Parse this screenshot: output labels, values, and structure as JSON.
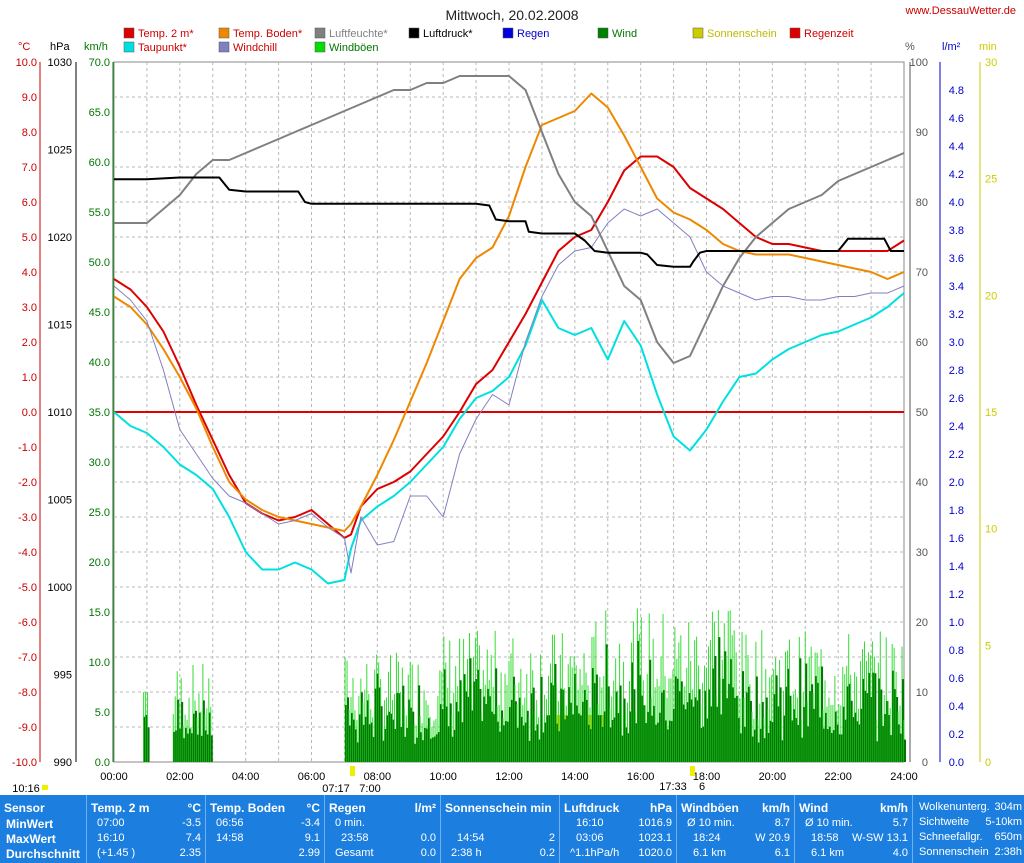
{
  "chart_data": {
    "type": "line",
    "title": "Mittwoch, 20.02.2008",
    "site": "www.DessauWetter.de",
    "grid": true,
    "x_ticks": [
      "00:00",
      "02:00",
      "04:00",
      "06:00",
      "08:00",
      "10:00",
      "12:00",
      "14:00",
      "16:00",
      "18:00",
      "20:00",
      "22:00",
      "24:00"
    ],
    "xlim": [
      0,
      24
    ],
    "axes": {
      "temp": {
        "unit": "°C",
        "ylim": [
          -10,
          10
        ],
        "ticks": [
          "10.0",
          "9.0",
          "8.0",
          "7.0",
          "6.0",
          "5.0",
          "4.0",
          "3.0",
          "2.0",
          "1.0",
          "0.0",
          "-1.0",
          "-2.0",
          "-3.0",
          "-4.0",
          "-5.0",
          "-6.0",
          "-7.0",
          "-8.0",
          "-9.0",
          "-10.0"
        ],
        "color": "#cc0000"
      },
      "press": {
        "unit": "hPa",
        "ylim": [
          990,
          1030
        ],
        "ticks": [
          "1030",
          "1025",
          "1020",
          "1015",
          "1010",
          "1005",
          "1000",
          "995",
          "990"
        ],
        "color": "#000000"
      },
      "wind": {
        "unit": "km/h",
        "ylim": [
          0,
          70
        ],
        "ticks": [
          "70.0",
          "65.0",
          "60.0",
          "55.0",
          "50.0",
          "45.0",
          "40.0",
          "35.0",
          "30.0",
          "25.0",
          "20.0",
          "15.0",
          "10.0",
          "5.0",
          "0.0"
        ],
        "color": "#007700"
      },
      "hum": {
        "unit": "%",
        "ylim": [
          0,
          100
        ],
        "ticks": [
          "100",
          "90",
          "80",
          "70",
          "60",
          "50",
          "40",
          "30",
          "20",
          "10",
          "0"
        ],
        "color": "#555555"
      },
      "rain": {
        "unit": "l/m²",
        "ylim": [
          0,
          5
        ],
        "ticks": [
          "4.8",
          "4.6",
          "4.4",
          "4.2",
          "4.0",
          "3.8",
          "3.6",
          "3.4",
          "3.2",
          "3.0",
          "2.8",
          "2.6",
          "2.4",
          "2.2",
          "2.0",
          "1.8",
          "1.6",
          "1.4",
          "1.2",
          "1.0",
          "0.8",
          "0.6",
          "0.4",
          "0.2",
          "0.0"
        ],
        "color": "#0000cc"
      },
      "sun": {
        "unit": "min",
        "ylim": [
          0,
          30
        ],
        "ticks": [
          "30",
          "25",
          "20",
          "15",
          "10",
          "5",
          "0"
        ],
        "color": "#cccc00"
      }
    },
    "legend": [
      {
        "label": "Temp. 2 m*",
        "color": "#dd0000",
        "text": "#cc0000"
      },
      {
        "label": "Temp. Boden*",
        "color": "#ee8800",
        "text": "#cc0000"
      },
      {
        "label": "Luftfeuchte*",
        "color": "#808080",
        "text": "#808080"
      },
      {
        "label": "Luftdruck*",
        "color": "#000000",
        "text": "#000000"
      },
      {
        "label": "Regen",
        "color": "#0000dd",
        "text": "#0000cc"
      },
      {
        "label": "Wind",
        "color": "#008000",
        "text": "#007700"
      },
      {
        "label": "Sonnenschein",
        "color": "#cccc00",
        "text": "#bbbb00"
      },
      {
        "label": "Regenzeit",
        "color": "#dd0000",
        "text": "#cc0000"
      },
      {
        "label": "Taupunkt*",
        "color": "#00e0e0",
        "text": "#cc0000"
      },
      {
        "label": "Windchill",
        "color": "#8080c0",
        "text": "#cc0000"
      },
      {
        "label": "Windböen",
        "color": "#00dd00",
        "text": "#007700"
      }
    ],
    "series": [
      {
        "name": "Temp. 2 m",
        "axis": "temp",
        "color": "#dd0000",
        "x": [
          0,
          0.5,
          1,
          1.5,
          2,
          2.5,
          3,
          3.5,
          4,
          4.5,
          5,
          5.5,
          6,
          6.5,
          7,
          7.2,
          7.5,
          8,
          8.5,
          9,
          9.5,
          10,
          10.5,
          11,
          11.5,
          12,
          12.5,
          13,
          13.5,
          14,
          14.5,
          15,
          15.5,
          16,
          16.5,
          17,
          17.5,
          18,
          18.5,
          19,
          19.5,
          20,
          20.5,
          21,
          21.5,
          22,
          22.5,
          23,
          23.5,
          24
        ],
        "y": [
          3.8,
          3.5,
          3.0,
          2.3,
          1.3,
          0.2,
          -0.8,
          -1.8,
          -2.6,
          -2.9,
          -3.1,
          -3.0,
          -2.8,
          -3.2,
          -3.6,
          -3.5,
          -2.7,
          -2.2,
          -2.0,
          -1.7,
          -1.2,
          -0.7,
          0,
          0.8,
          1.2,
          2.0,
          2.8,
          3.7,
          4.6,
          5.0,
          5.2,
          6.0,
          6.9,
          7.3,
          7.3,
          7.0,
          6.4,
          6.1,
          5.8,
          5.4,
          5.0,
          4.8,
          4.8,
          4.7,
          4.6,
          4.6,
          4.6,
          4.6,
          4.6,
          4.9
        ]
      },
      {
        "name": "Temp. Boden",
        "axis": "temp",
        "color": "#ee8800",
        "x": [
          0,
          0.5,
          1,
          1.5,
          2,
          2.5,
          3,
          3.5,
          4,
          4.5,
          5,
          5.5,
          6,
          6.5,
          7,
          7.2,
          7.5,
          8,
          8.5,
          9,
          9.5,
          10,
          10.5,
          11,
          11.5,
          12,
          12.5,
          13,
          13.5,
          14,
          14.5,
          15,
          15.5,
          16,
          16.5,
          17,
          17.5,
          18,
          18.5,
          19,
          19.5,
          20,
          20.5,
          21,
          21.5,
          22,
          22.5,
          23,
          23.5,
          24
        ],
        "y": [
          3.3,
          3.0,
          2.5,
          1.8,
          1.0,
          0.1,
          -1.0,
          -2.0,
          -2.5,
          -2.8,
          -3.0,
          -3.1,
          -3.2,
          -3.3,
          -3.4,
          -3.2,
          -2.7,
          -1.8,
          -0.8,
          0.3,
          1.4,
          2.6,
          3.8,
          4.4,
          4.7,
          5.6,
          7.0,
          8.2,
          8.4,
          8.6,
          9.1,
          8.7,
          7.9,
          7.0,
          6.1,
          5.7,
          5.5,
          5.2,
          4.8,
          4.6,
          4.5,
          4.5,
          4.5,
          4.4,
          4.3,
          4.2,
          4.1,
          4.0,
          3.8,
          4.0
        ]
      },
      {
        "name": "Taupunkt",
        "axis": "temp",
        "color": "#00e0e0",
        "x": [
          0,
          0.5,
          1,
          1.5,
          2,
          2.5,
          3,
          3.5,
          4,
          4.5,
          5,
          5.5,
          6,
          6.5,
          7,
          7.2,
          7.5,
          8,
          8.5,
          9,
          9.5,
          10,
          10.5,
          11,
          11.5,
          12,
          12.5,
          13,
          13.5,
          14,
          14.5,
          15,
          15.5,
          16,
          16.5,
          17,
          17.5,
          18,
          18.5,
          19,
          19.5,
          20,
          20.5,
          21,
          21.5,
          22,
          22.5,
          23,
          23.5,
          24
        ],
        "y": [
          0,
          -0.4,
          -0.6,
          -1.0,
          -1.5,
          -1.8,
          -2.2,
          -3.0,
          -4.0,
          -4.5,
          -4.5,
          -4.3,
          -4.5,
          -4.9,
          -4.8,
          -3.9,
          -3.1,
          -2.7,
          -2.4,
          -2.0,
          -1.5,
          -1.0,
          -0.2,
          0.4,
          0.6,
          1.0,
          1.9,
          3.2,
          2.4,
          2.2,
          2.4,
          1.5,
          2.6,
          1.9,
          0.5,
          -0.7,
          -1.1,
          -0.5,
          0.3,
          1.0,
          1.1,
          1.5,
          1.8,
          2.0,
          2.2,
          2.3,
          2.5,
          2.7,
          3.0,
          3.4
        ]
      },
      {
        "name": "Windchill",
        "axis": "temp",
        "color": "#8080c0",
        "x": [
          0,
          0.5,
          1,
          1.5,
          2,
          2.5,
          3,
          3.5,
          4,
          4.5,
          5,
          5.5,
          6,
          6.5,
          7,
          7.2,
          7.5,
          8,
          8.5,
          9,
          9.5,
          10,
          10.5,
          11,
          11.5,
          12,
          12.5,
          13,
          13.5,
          14,
          14.5,
          15,
          15.5,
          16,
          16.5,
          17,
          17.5,
          18,
          18.5,
          19,
          19.5,
          20,
          20.5,
          21,
          21.5,
          22,
          22.5,
          23,
          23.5,
          24
        ],
        "y": [
          3.6,
          3.2,
          2.6,
          1.2,
          -0.5,
          -1.2,
          -1.9,
          -2.4,
          -2.6,
          -2.9,
          -3.2,
          -3.1,
          -2.9,
          -3.3,
          -3.6,
          -4.6,
          -3.0,
          -3.8,
          -3.7,
          -2.4,
          -2.4,
          -3.0,
          -1.2,
          -0.2,
          0.5,
          0.2,
          2.0,
          3.3,
          4.2,
          4.6,
          4.7,
          5.4,
          5.8,
          5.6,
          5.8,
          5.4,
          5.0,
          4.0,
          3.6,
          3.4,
          3.2,
          3.3,
          3.3,
          3.2,
          3.2,
          3.3,
          3.3,
          3.4,
          3.4,
          3.6
        ]
      },
      {
        "name": "Luftfeuchte",
        "axis": "hum",
        "color": "#808080",
        "x": [
          0,
          0.5,
          1,
          1.5,
          2,
          2.5,
          3,
          3.5,
          4,
          4.5,
          5,
          5.5,
          6,
          6.5,
          7,
          7.5,
          8,
          8.5,
          9,
          9.5,
          10,
          10.5,
          11,
          11.5,
          12,
          12.5,
          13,
          13.5,
          14,
          14.5,
          15,
          15.5,
          16,
          16.5,
          17,
          17.5,
          18,
          18.5,
          19,
          19.5,
          20,
          20.5,
          21,
          21.5,
          22,
          22.5,
          23,
          23.5,
          24
        ],
        "y": [
          77,
          77,
          77,
          79,
          81,
          84,
          86,
          86,
          87,
          88,
          89,
          90,
          91,
          92,
          93,
          94,
          95,
          96,
          96,
          97,
          97,
          98,
          98,
          98,
          98,
          96,
          90,
          84,
          80,
          78,
          73,
          68,
          66,
          60,
          57,
          58,
          63,
          68,
          72,
          75,
          77,
          79,
          80,
          81,
          83,
          84,
          85,
          86,
          87
        ]
      },
      {
        "name": "Luftdruck",
        "axis": "press",
        "color": "#000000",
        "x": [
          0,
          1,
          2,
          3,
          3.2,
          3.5,
          4,
          5,
          5.6,
          5.8,
          6,
          7,
          8,
          9,
          10,
          11,
          11.4,
          11.6,
          12,
          12.5,
          12.6,
          13,
          14,
          14.3,
          14.6,
          15,
          16,
          16.2,
          16.5,
          17,
          17.5,
          17.6,
          17.8,
          18,
          19,
          20,
          21,
          21.5,
          22,
          22.3,
          22.5,
          23,
          23.4,
          23.6,
          24
        ],
        "y": [
          1023.3,
          1023.3,
          1023.4,
          1023.4,
          1023.4,
          1022.7,
          1022.6,
          1022.6,
          1022.6,
          1022.0,
          1021.9,
          1021.9,
          1021.9,
          1021.9,
          1021.9,
          1021.9,
          1021.8,
          1021.0,
          1020.9,
          1020.9,
          1020.3,
          1020.2,
          1020.2,
          1019.8,
          1019.2,
          1019.1,
          1019.1,
          1019.0,
          1018.4,
          1018.3,
          1018.3,
          1018.6,
          1019.1,
          1019.2,
          1019.2,
          1019.2,
          1019.2,
          1019.2,
          1019.2,
          1019.9,
          1019.9,
          1019.9,
          1019.9,
          1019.2,
          1019.2
        ]
      }
    ],
    "summary": {
      "headers": {
        "sensor": "Sensor",
        "temp": "Temp. 2 m",
        "temp_u": "°C",
        "boden": "Temp. Boden",
        "boden_u": "°C",
        "regen": "Regen",
        "regen_u": "l/m²",
        "sonne": "Sonnenschein min",
        "druck": "Luftdruck",
        "druck_u": "hPa",
        "boeen": "Windböen",
        "boeen_u": "km/h",
        "wind": "Wind",
        "wind_u": "km/h"
      },
      "rows": [
        "MinWert",
        "MaxWert",
        "Durchschnitt"
      ],
      "temp": [
        [
          "07:00",
          "-3.5"
        ],
        [
          "16:10",
          "7.4"
        ],
        [
          "(+1.45 )",
          "2.35"
        ]
      ],
      "boden": [
        [
          "06:56",
          "-3.4"
        ],
        [
          "14:58",
          "9.1"
        ],
        [
          "",
          "2.99"
        ]
      ],
      "regen": [
        [
          "0 min.",
          ""
        ],
        [
          "23:58",
          "0.0"
        ],
        [
          "Gesamt",
          "0.0"
        ]
      ],
      "sonne": [
        [
          "",
          ""
        ],
        [
          "14:54",
          "2"
        ],
        [
          "2:38 h",
          "0.2"
        ]
      ],
      "druck": [
        [
          "16:10",
          "1016.9"
        ],
        [
          "03:06",
          "1023.1"
        ],
        [
          "^1.1hPa/h",
          "1020.0"
        ]
      ],
      "boeen": [
        [
          "Ø 10 min.",
          "8.7"
        ],
        [
          "18:24",
          "W 20.9"
        ],
        [
          "6.1 km",
          "6.1"
        ]
      ],
      "wind": [
        [
          "Ø 10 min.",
          "5.7"
        ],
        [
          "18:58",
          "W-SW 13.1"
        ],
        [
          "6.1 km",
          "4.0"
        ]
      ],
      "extra": [
        [
          "Wolkenunterg.",
          "304m"
        ],
        [
          "Sichtweite",
          "5-10km"
        ],
        [
          "Schneefallgr.",
          "650m"
        ],
        [
          "Sonnenschein",
          "2:38h"
        ]
      ]
    },
    "time_markers": {
      "start": "10:16",
      "sunrise": "07:17",
      "sunrise2": "7:00",
      "sunset": "17:33",
      "sunset2": "6"
    }
  }
}
